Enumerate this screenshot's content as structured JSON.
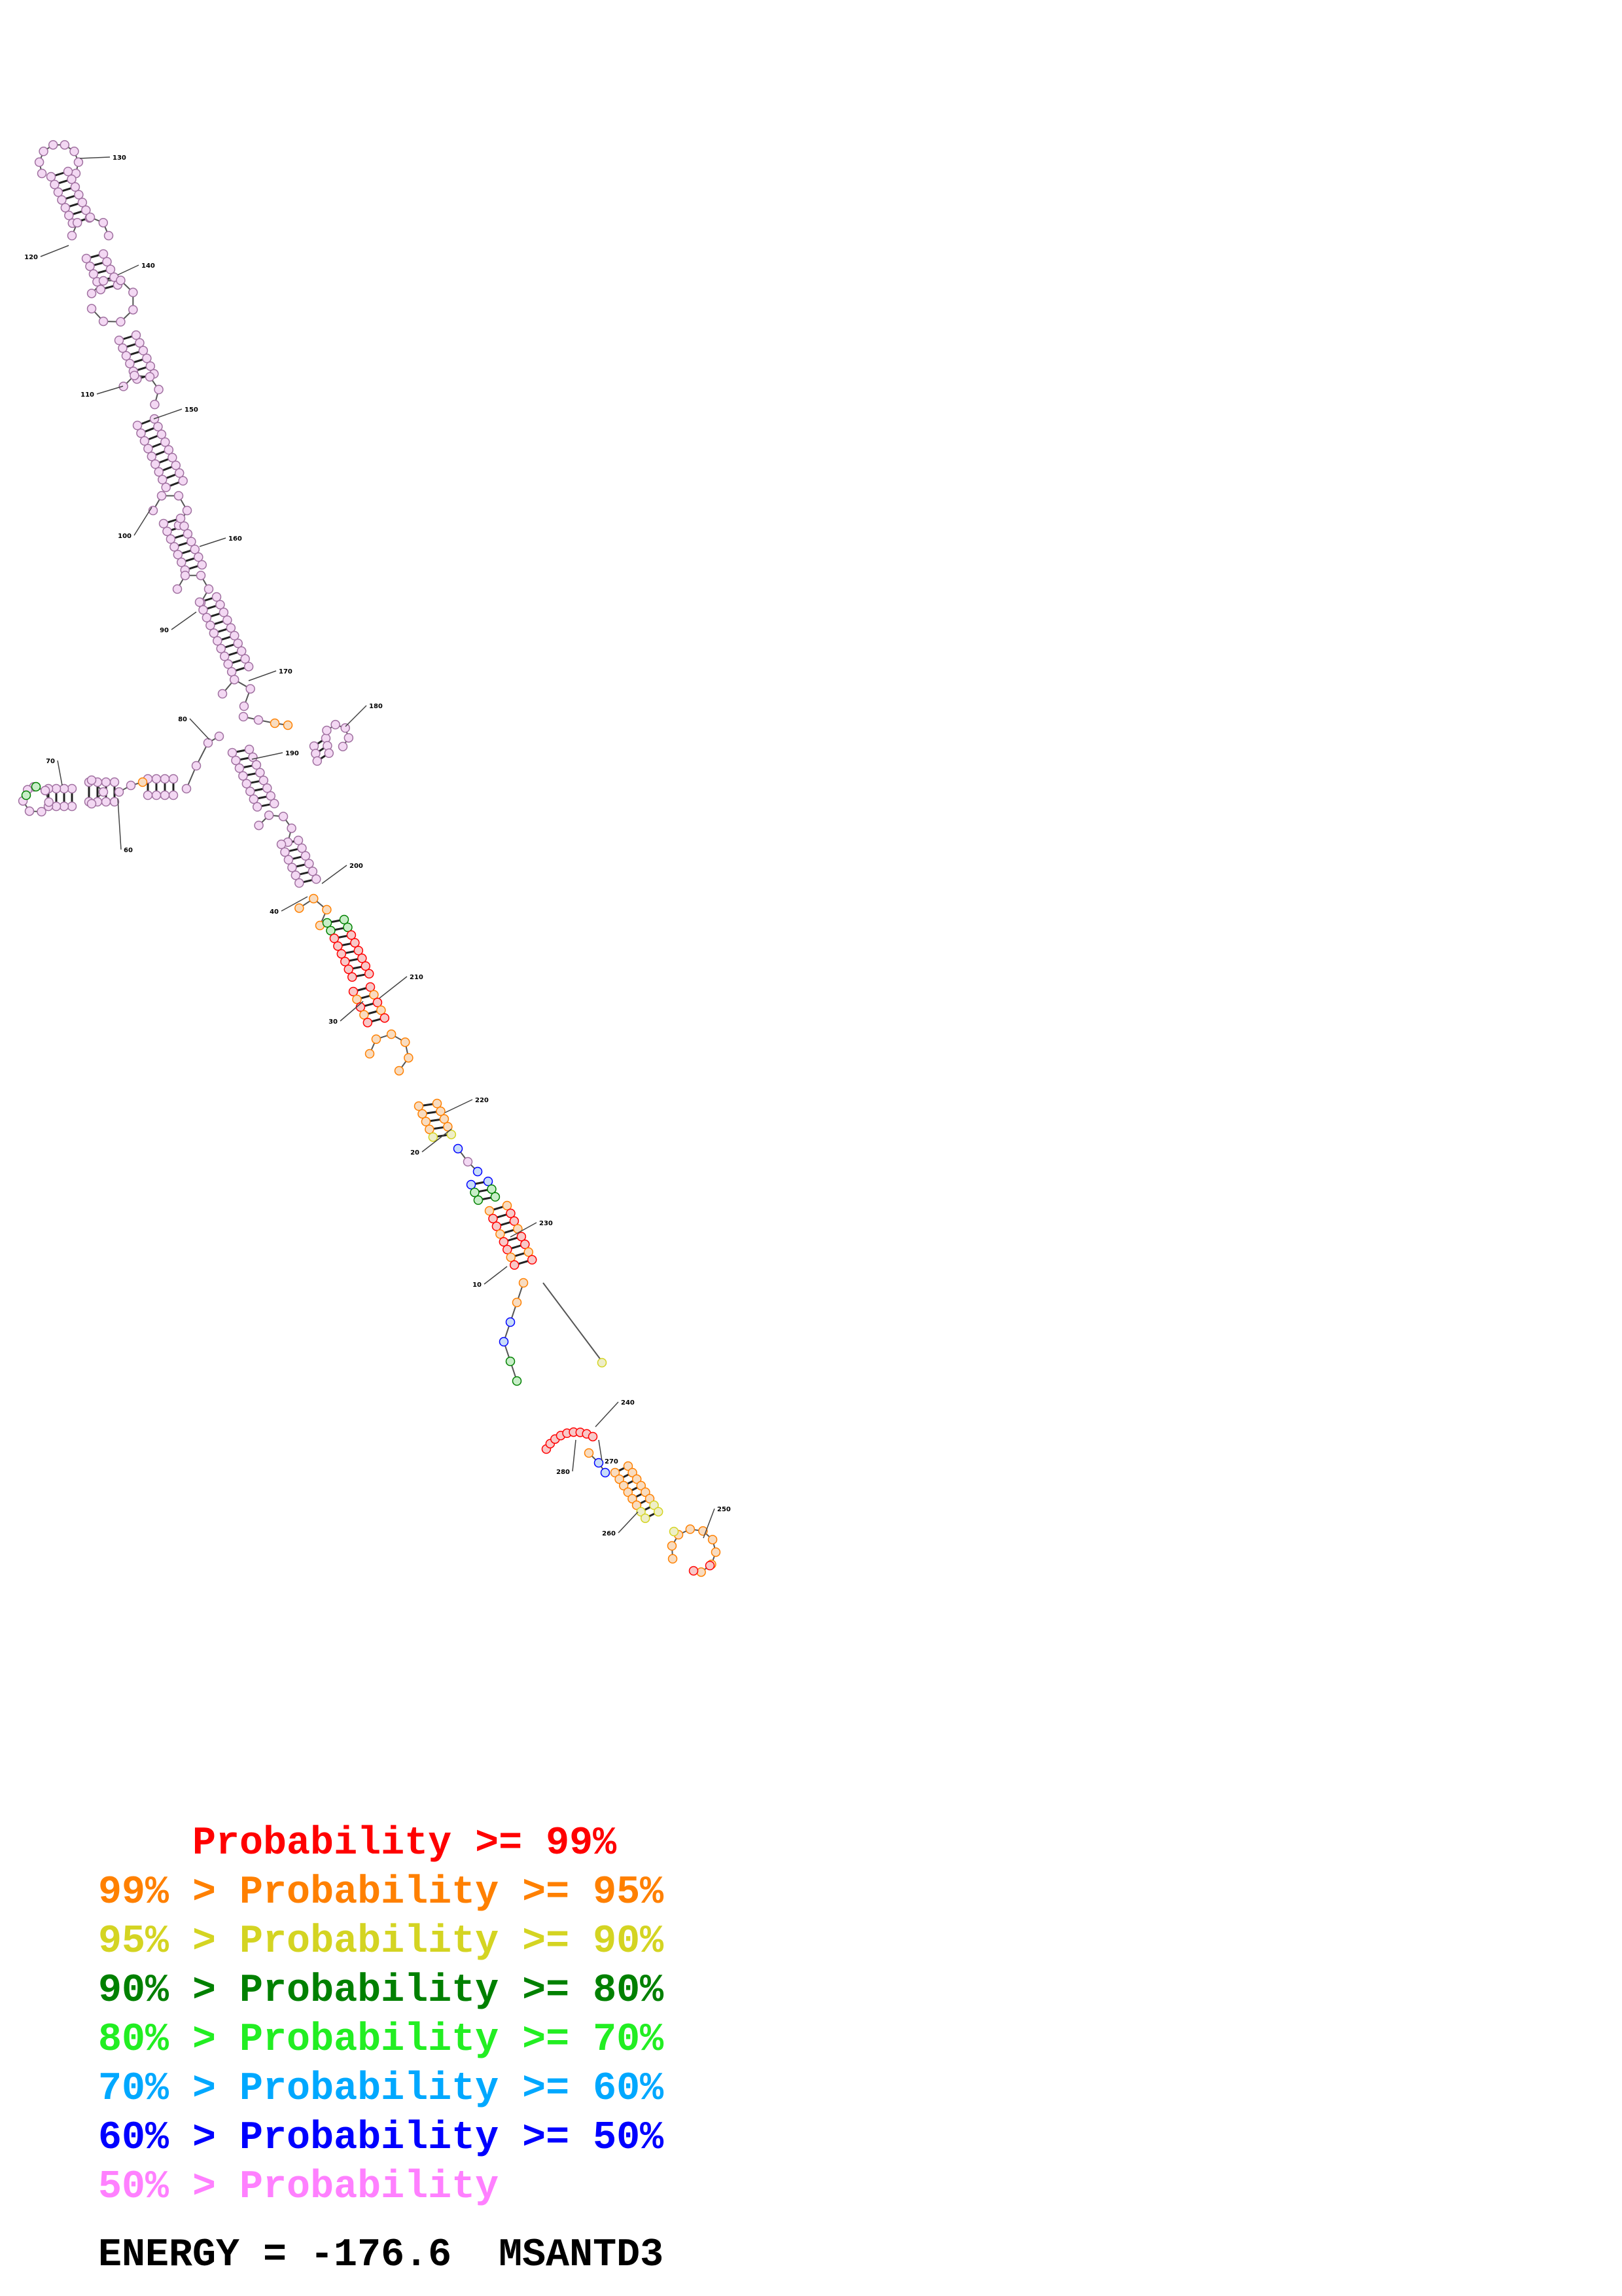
{
  "diagram": {
    "position_labels": [
      "10",
      "20",
      "30",
      "40",
      "60",
      "70",
      "80",
      "90",
      "100",
      "110",
      "120",
      "130",
      "140",
      "150",
      "160",
      "170",
      "180",
      "190",
      "200",
      "210",
      "220",
      "230",
      "240",
      "250",
      "260",
      "270",
      "280"
    ],
    "colors": {
      "p99": "#ff0000",
      "p95": "#ff8000",
      "p90": "#d4d422",
      "p80": "#008000",
      "p70": "#22ee22",
      "p60": "#00a8ff",
      "p50": "#0000ff",
      "plow": "#ff80ff",
      "node_fill_pink": "#f3d8f3",
      "node_fill_red": "#f8c8c8",
      "node_fill_orange": "#f8dcc0",
      "node_fill_yellow": "#eeeec8",
      "node_fill_green": "#c8eec8",
      "node_fill_blue": "#c8dcf8"
    }
  },
  "legend": [
    {
      "prefix": "    ",
      "text": "Probability >= 99%",
      "color": "#ff0000"
    },
    {
      "prefix": "99% > ",
      "text": "Probability >= 95%",
      "color": "#ff8000"
    },
    {
      "prefix": "95% > ",
      "text": "Probability >= 90%",
      "color": "#d4d422"
    },
    {
      "prefix": "90% > ",
      "text": "Probability >= 80%",
      "color": "#008000"
    },
    {
      "prefix": "80% > ",
      "text": "Probability >= 70%",
      "color": "#22ee22"
    },
    {
      "prefix": "70% > ",
      "text": "Probability >= 60%",
      "color": "#00a8ff"
    },
    {
      "prefix": "60% > ",
      "text": "Probability >= 50%",
      "color": "#0000ff"
    },
    {
      "prefix": "50% > ",
      "text": "Probability",
      "color": "#ff80ff"
    }
  ],
  "energy_line": "ENERGY = -176.6  MSANTD3"
}
